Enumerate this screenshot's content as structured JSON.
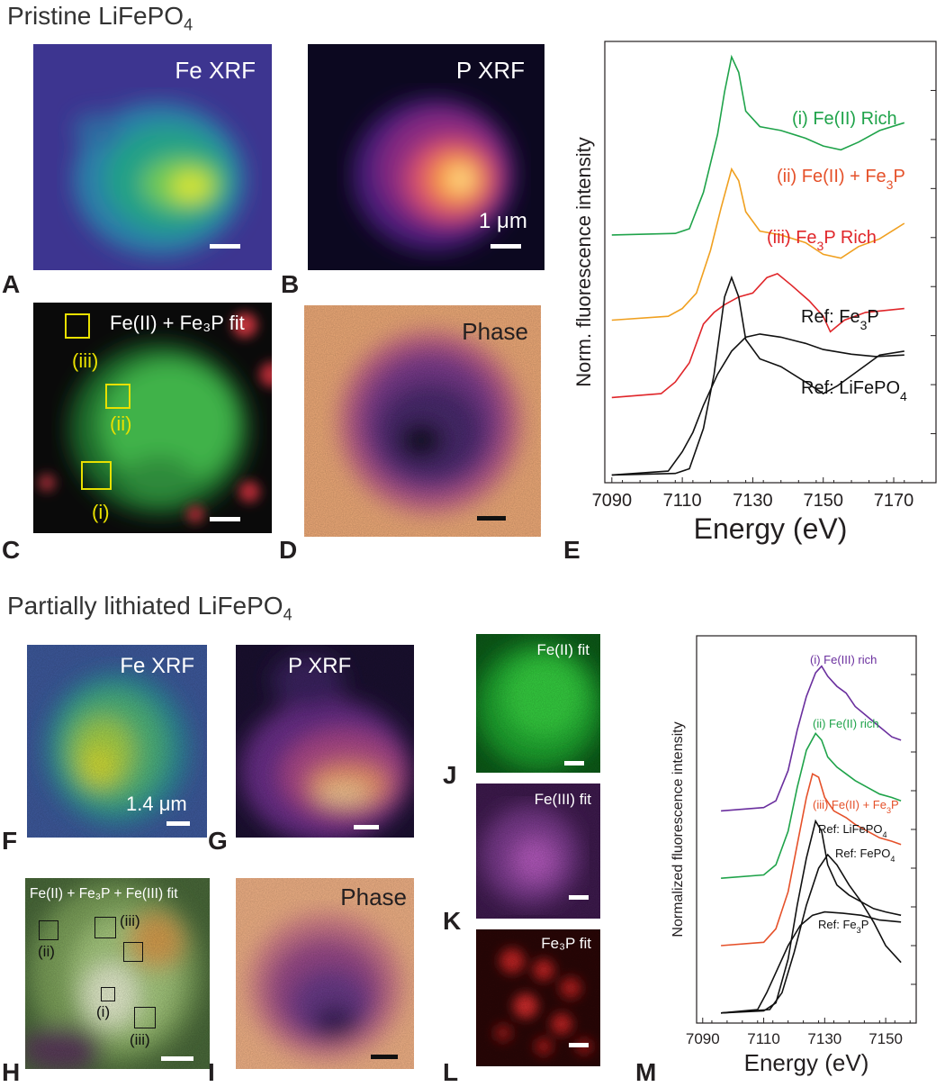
{
  "top": {
    "title": "Pristine LiFePO",
    "title_sub": "4",
    "panels": {
      "A": {
        "label": "A",
        "title": "Fe XRF"
      },
      "B": {
        "label": "B",
        "title": "P XRF",
        "scale": "1 μm"
      },
      "C": {
        "label": "C",
        "title": "Fe(II) + Fe₃P fit",
        "rois": [
          "(iii)",
          "(ii)",
          "(i)"
        ]
      },
      "D": {
        "label": "D",
        "title": "Phase"
      },
      "E": {
        "label": "E"
      }
    }
  },
  "bottom": {
    "title": "Partially lithiated LiFePO",
    "title_sub": "4",
    "panels": {
      "F": {
        "label": "F",
        "title": "Fe XRF",
        "scale": "1.4 μm"
      },
      "G": {
        "label": "G",
        "title": "P XRF"
      },
      "H": {
        "label": "H",
        "title": "Fe(II) + Fe₃P + Fe(III) fit",
        "rois": [
          "(ii)",
          "(iii)",
          "(iii)",
          "(i)"
        ]
      },
      "I": {
        "label": "I",
        "title": "Phase"
      },
      "J": {
        "label": "J",
        "title": "Fe(II) fit"
      },
      "K": {
        "label": "K",
        "title": "Fe(III) fit"
      },
      "L": {
        "label": "L",
        "title": "Fe₃P fit"
      },
      "M": {
        "label": "M"
      }
    }
  },
  "colors": {
    "green": "#1fa34a",
    "orange": "#f0a020",
    "red": "#e0262a",
    "purple": "#6a2f9e",
    "orange_m": "#e5512a",
    "black": "#111111"
  },
  "chart_data": [
    {
      "type": "line",
      "panel": "E",
      "xlabel": "Energy (eV)",
      "ylabel": "Norm. fluorescence intensity",
      "xlim": [
        7088,
        7182
      ],
      "x_ticks": [
        "7090",
        "7110",
        "7130",
        "7150",
        "7170"
      ],
      "series": [
        {
          "name": "(i) Fe(II) Rich",
          "color": "#1fa34a",
          "offset": 3.1,
          "points": [
            [
              7090,
              0
            ],
            [
              7108,
              0.02
            ],
            [
              7112,
              0.08
            ],
            [
              7116,
              0.55
            ],
            [
              7120,
              1.3
            ],
            [
              7122,
              1.85
            ],
            [
              7124,
              2.3
            ],
            [
              7126,
              2.1
            ],
            [
              7128,
              1.6
            ],
            [
              7132,
              1.4
            ],
            [
              7138,
              1.35
            ],
            [
              7145,
              1.25
            ],
            [
              7150,
              1.15
            ],
            [
              7155,
              1.1
            ],
            [
              7160,
              1.2
            ],
            [
              7166,
              1.35
            ],
            [
              7173,
              1.45
            ]
          ]
        },
        {
          "name": "(ii) Fe(II) + Fe3P",
          "color": "#f0a020",
          "offset": 2.0,
          "points": [
            [
              7090,
              0
            ],
            [
              7106,
              0.05
            ],
            [
              7110,
              0.15
            ],
            [
              7114,
              0.35
            ],
            [
              7118,
              0.9
            ],
            [
              7121,
              1.45
            ],
            [
              7124,
              1.95
            ],
            [
              7126,
              1.8
            ],
            [
              7128,
              1.4
            ],
            [
              7132,
              1.15
            ],
            [
              7138,
              1.1
            ],
            [
              7145,
              1.0
            ],
            [
              7150,
              0.85
            ],
            [
              7155,
              0.8
            ],
            [
              7160,
              0.95
            ],
            [
              7166,
              1.05
            ],
            [
              7173,
              1.25
            ]
          ]
        },
        {
          "name": "(iii) Fe3P Rich",
          "color": "#e0262a",
          "offset": 1.0,
          "points": [
            [
              7090,
              0
            ],
            [
              7104,
              0.05
            ],
            [
              7108,
              0.2
            ],
            [
              7112,
              0.45
            ],
            [
              7116,
              0.95
            ],
            [
              7119,
              1.1
            ],
            [
              7122,
              1.2
            ],
            [
              7126,
              1.3
            ],
            [
              7130,
              1.35
            ],
            [
              7134,
              1.55
            ],
            [
              7137,
              1.6
            ],
            [
              7141,
              1.45
            ],
            [
              7146,
              1.25
            ],
            [
              7150,
              1.05
            ],
            [
              7152,
              0.85
            ],
            [
              7156,
              1.0
            ],
            [
              7162,
              1.1
            ],
            [
              7173,
              1.15
            ]
          ]
        },
        {
          "name": "Ref: Fe3P",
          "color": "#111111",
          "offset": 0.0,
          "points": [
            [
              7090,
              0
            ],
            [
              7106,
              0.05
            ],
            [
              7110,
              0.3
            ],
            [
              7113,
              0.55
            ],
            [
              7116,
              0.9
            ],
            [
              7120,
              1.3
            ],
            [
              7124,
              1.6
            ],
            [
              7128,
              1.78
            ],
            [
              7132,
              1.82
            ],
            [
              7138,
              1.78
            ],
            [
              7145,
              1.7
            ],
            [
              7150,
              1.62
            ],
            [
              7158,
              1.56
            ],
            [
              7165,
              1.53
            ],
            [
              7173,
              1.55
            ]
          ]
        },
        {
          "name": "Ref: LiFePO4",
          "color": "#111111",
          "offset": 0.0,
          "points": [
            [
              7090,
              0
            ],
            [
              7108,
              0.02
            ],
            [
              7112,
              0.08
            ],
            [
              7116,
              0.6
            ],
            [
              7119,
              1.3
            ],
            [
              7122,
              2.3
            ],
            [
              7124,
              2.55
            ],
            [
              7126,
              2.3
            ],
            [
              7128,
              1.75
            ],
            [
              7132,
              1.5
            ],
            [
              7138,
              1.4
            ],
            [
              7145,
              1.2
            ],
            [
              7150,
              1.05
            ],
            [
              7154,
              1.15
            ],
            [
              7160,
              1.35
            ],
            [
              7166,
              1.55
            ],
            [
              7173,
              1.6
            ]
          ]
        }
      ],
      "labels": [
        {
          "text": "(i) Fe(II) Rich",
          "color": "#1fa34a"
        },
        {
          "text": "(ii) Fe(II) + Fe",
          "sub": "3",
          "tail": "P",
          "color": "#e5512a"
        },
        {
          "text": "(iii) Fe",
          "sub": "3",
          "tail": "P Rich",
          "color": "#e0262a"
        },
        {
          "text": "Ref: Fe",
          "sub": "3",
          "tail": "P",
          "color": "#111111"
        },
        {
          "text": "Ref: LiFePO",
          "sub": "4",
          "tail": "",
          "color": "#111111"
        }
      ]
    },
    {
      "type": "line",
      "panel": "M",
      "xlabel": "Energy (eV)",
      "ylabel": "Normalized fluorescence intensity",
      "xlim": [
        7088,
        7160
      ],
      "x_ticks": [
        "7090",
        "7110",
        "7130",
        "7150"
      ],
      "series": [
        {
          "name": "(i) Fe(III) rich",
          "color": "#6a2f9e",
          "offset": 3.0,
          "points": [
            [
              7096,
              0
            ],
            [
              7110,
              0.05
            ],
            [
              7114,
              0.15
            ],
            [
              7118,
              0.6
            ],
            [
              7121,
              1.2
            ],
            [
              7124,
              1.7
            ],
            [
              7127,
              2.05
            ],
            [
              7129,
              2.15
            ],
            [
              7131,
              2.0
            ],
            [
              7134,
              1.85
            ],
            [
              7137,
              1.75
            ],
            [
              7140,
              1.55
            ],
            [
              7144,
              1.4
            ],
            [
              7148,
              1.25
            ],
            [
              7152,
              1.1
            ],
            [
              7155,
              1.05
            ]
          ]
        },
        {
          "name": "(ii) Fe(II) rich",
          "color": "#1fa34a",
          "offset": 2.0,
          "points": [
            [
              7096,
              0
            ],
            [
              7110,
              0.05
            ],
            [
              7114,
              0.2
            ],
            [
              7118,
              0.7
            ],
            [
              7121,
              1.35
            ],
            [
              7124,
              1.9
            ],
            [
              7127,
              2.15
            ],
            [
              7129,
              2.05
            ],
            [
              7131,
              1.8
            ],
            [
              7134,
              1.65
            ],
            [
              7137,
              1.55
            ],
            [
              7140,
              1.45
            ],
            [
              7144,
              1.35
            ],
            [
              7148,
              1.25
            ],
            [
              7152,
              1.2
            ],
            [
              7155,
              1.15
            ]
          ]
        },
        {
          "name": "(iii) Fe(II) + Fe3P",
          "color": "#e5512a",
          "offset": 1.0,
          "points": [
            [
              7096,
              0
            ],
            [
              7110,
              0.05
            ],
            [
              7114,
              0.25
            ],
            [
              7118,
              0.8
            ],
            [
              7121,
              1.5
            ],
            [
              7124,
              2.2
            ],
            [
              7126,
              2.55
            ],
            [
              7128,
              2.5
            ],
            [
              7130,
              2.2
            ],
            [
              7133,
              2.0
            ],
            [
              7137,
              1.9
            ],
            [
              7140,
              1.8
            ],
            [
              7144,
              1.7
            ],
            [
              7148,
              1.6
            ],
            [
              7152,
              1.55
            ],
            [
              7155,
              1.5
            ]
          ]
        },
        {
          "name": "Ref: LiFePO4",
          "color": "#111111",
          "offset": 0.0,
          "points": [
            [
              7096,
              0
            ],
            [
              7110,
              0.03
            ],
            [
              7114,
              0.15
            ],
            [
              7118,
              0.8
            ],
            [
              7121,
              1.6
            ],
            [
              7124,
              2.3
            ],
            [
              7127,
              2.85
            ],
            [
              7129,
              2.7
            ],
            [
              7131,
              2.2
            ],
            [
              7134,
              1.9
            ],
            [
              7138,
              1.75
            ],
            [
              7142,
              1.65
            ],
            [
              7146,
              1.55
            ],
            [
              7150,
              1.5
            ],
            [
              7155,
              1.45
            ]
          ]
        },
        {
          "name": "Ref: FePO4",
          "color": "#111111",
          "offset": 0.0,
          "points": [
            [
              7096,
              0
            ],
            [
              7112,
              0.05
            ],
            [
              7116,
              0.3
            ],
            [
              7120,
              0.9
            ],
            [
              7124,
              1.6
            ],
            [
              7128,
              2.15
            ],
            [
              7131,
              2.35
            ],
            [
              7134,
              2.2
            ],
            [
              7138,
              1.9
            ],
            [
              7142,
              1.65
            ],
            [
              7146,
              1.35
            ],
            [
              7150,
              1.0
            ],
            [
              7155,
              0.75
            ]
          ]
        },
        {
          "name": "Ref: Fe3P",
          "color": "#111111",
          "offset": 0.0,
          "points": [
            [
              7096,
              0
            ],
            [
              7108,
              0.05
            ],
            [
              7111,
              0.3
            ],
            [
              7114,
              0.6
            ],
            [
              7118,
              1.0
            ],
            [
              7122,
              1.3
            ],
            [
              7126,
              1.45
            ],
            [
              7130,
              1.5
            ],
            [
              7136,
              1.48
            ],
            [
              7142,
              1.45
            ],
            [
              7148,
              1.38
            ],
            [
              7155,
              1.35
            ]
          ]
        }
      ],
      "labels": [
        {
          "text": "(i) Fe(III) rich",
          "color": "#6a2f9e"
        },
        {
          "text": "(ii) Fe(II) rich",
          "color": "#1fa34a"
        },
        {
          "text": "(iii) Fe(II) + Fe",
          "sub": "3",
          "tail": "P",
          "color": "#e5512a"
        },
        {
          "text": "Ref: LiFePO",
          "sub": "4",
          "tail": "",
          "color": "#111111"
        },
        {
          "text": "Ref: FePO",
          "sub": "4",
          "tail": "",
          "color": "#111111"
        },
        {
          "text": "Ref: Fe",
          "sub": "3",
          "tail": "P",
          "color": "#111111"
        }
      ]
    }
  ]
}
